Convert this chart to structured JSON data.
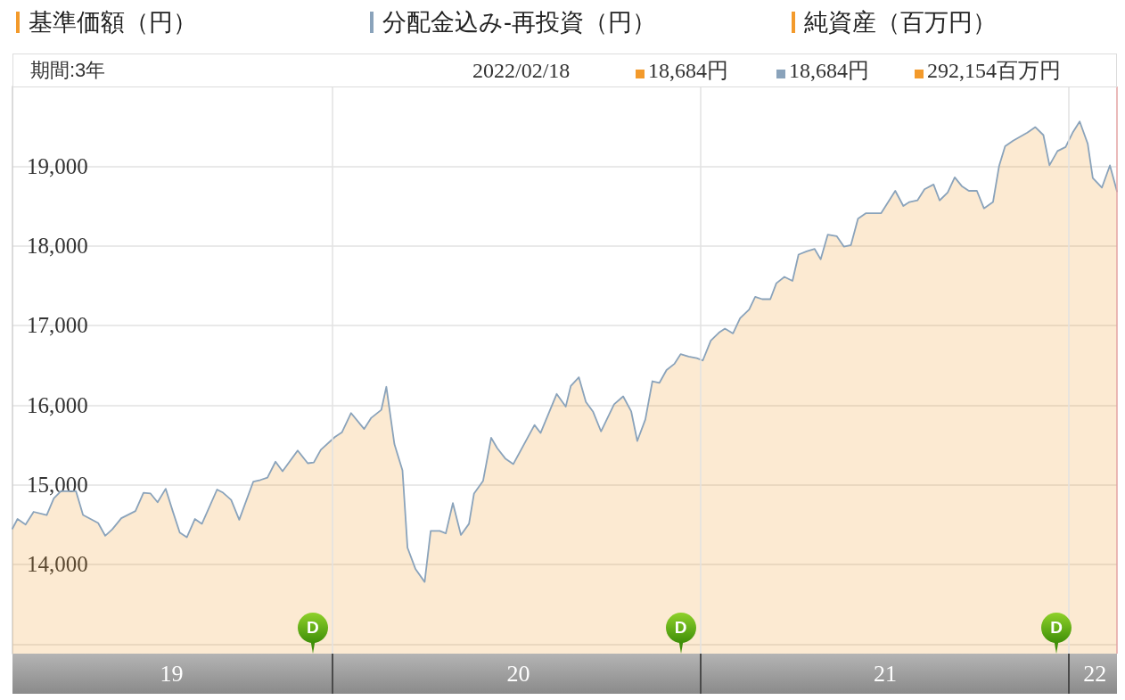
{
  "chart_data": {
    "type": "line",
    "x": [
      "2019-02-18",
      "2019-02-23",
      "2019-03-03",
      "2019-03-11",
      "2019-03-24",
      "2019-03-31",
      "2019-04-07",
      "2019-04-22",
      "2019-04-29",
      "2019-05-14",
      "2019-05-21",
      "2019-05-28",
      "2019-06-06",
      "2019-06-20",
      "2019-06-28",
      "2019-07-05",
      "2019-07-12",
      "2019-07-20",
      "2019-07-27",
      "2019-08-03",
      "2019-08-10",
      "2019-08-18",
      "2019-08-25",
      "2019-09-09",
      "2019-09-15",
      "2019-09-23",
      "2019-10-01",
      "2019-10-15",
      "2019-10-22",
      "2019-10-29",
      "2019-11-06",
      "2019-11-13",
      "2019-11-28",
      "2019-12-08",
      "2019-12-14",
      "2019-12-21",
      "2020-01-04",
      "2020-01-11",
      "2020-01-20",
      "2020-02-02",
      "2020-02-09",
      "2020-02-19",
      "2020-02-24",
      "2020-03-03",
      "2020-03-11",
      "2020-03-16",
      "2020-03-24",
      "2020-04-02",
      "2020-04-08",
      "2020-04-17",
      "2020-04-23",
      "2020-04-30",
      "2020-05-08",
      "2020-05-16",
      "2020-05-21",
      "2020-05-30",
      "2020-06-07",
      "2020-06-13",
      "2020-06-21",
      "2020-06-29",
      "2020-07-20",
      "2020-07-26",
      "2020-08-11",
      "2020-08-20",
      "2020-08-25",
      "2020-09-02",
      "2020-09-09",
      "2020-09-16",
      "2020-09-24",
      "2020-10-07",
      "2020-10-16",
      "2020-10-24",
      "2020-10-30",
      "2020-11-07",
      "2020-11-14",
      "2020-11-21",
      "2020-11-28",
      "2020-12-06",
      "2020-12-12",
      "2020-12-20",
      "2020-12-28",
      "2021-01-03",
      "2021-01-11",
      "2021-01-19",
      "2021-01-25",
      "2021-02-02",
      "2021-02-09",
      "2021-02-18",
      "2021-02-24",
      "2021-03-03",
      "2021-03-11",
      "2021-03-17",
      "2021-03-25",
      "2021-04-02",
      "2021-04-08",
      "2021-04-16",
      "2021-04-24",
      "2021-04-30",
      "2021-05-07",
      "2021-05-16",
      "2021-05-23",
      "2021-05-30",
      "2021-06-06",
      "2021-06-14",
      "2021-06-29",
      "2021-07-13",
      "2021-07-21",
      "2021-07-27",
      "2021-08-04",
      "2021-08-11",
      "2021-08-20",
      "2021-08-26",
      "2021-09-03",
      "2021-09-10",
      "2021-09-17",
      "2021-09-24",
      "2021-10-02",
      "2021-10-09",
      "2021-10-18",
      "2021-10-24",
      "2021-10-30",
      "2021-11-07",
      "2021-11-14",
      "2021-11-21",
      "2021-11-29",
      "2021-12-07",
      "2021-12-13",
      "2021-12-21",
      "2021-12-29",
      "2022-01-05",
      "2022-01-12",
      "2022-01-20",
      "2022-01-25",
      "2022-02-03",
      "2022-02-11",
      "2022-02-18"
    ],
    "series": [
      {
        "name": "基準価額（円）",
        "type": "area",
        "color": "#f39a2b",
        "values": [
          14450,
          14570,
          14500,
          14660,
          14620,
          14830,
          14920,
          14920,
          14620,
          14520,
          14360,
          14440,
          14580,
          14670,
          14900,
          14890,
          14780,
          14950,
          14670,
          14400,
          14340,
          14570,
          14510,
          14940,
          14900,
          14810,
          14560,
          15040,
          15060,
          15090,
          15290,
          15170,
          15430,
          15270,
          15280,
          15440,
          15600,
          15660,
          15900,
          15700,
          15840,
          15940,
          16230,
          15510,
          15180,
          14210,
          13940,
          13780,
          14420,
          14420,
          14390,
          14770,
          14370,
          14510,
          14890,
          15050,
          15590,
          15460,
          15330,
          15260,
          15750,
          15650,
          16140,
          15980,
          16240,
          16350,
          16040,
          15920,
          15670,
          16010,
          16110,
          15920,
          15550,
          15820,
          16300,
          16280,
          16440,
          16520,
          16640,
          16610,
          16590,
          16560,
          16810,
          16910,
          16960,
          16900,
          17090,
          17200,
          17360,
          17330,
          17330,
          17530,
          17610,
          17560,
          17890,
          17930,
          17960,
          17830,
          18140,
          18120,
          17990,
          18010,
          18340,
          18410,
          18410,
          18690,
          18500,
          18550,
          18570,
          18710,
          18770,
          18570,
          18670,
          18860,
          18750,
          18690,
          18690,
          18470,
          18550,
          19000,
          19250,
          19320,
          19370,
          19420,
          19490,
          19390,
          19010,
          19190,
          19240,
          19420,
          19560,
          19280,
          18850,
          18730,
          19010,
          18684
        ]
      },
      {
        "name": "分配金込み-再投資（円）",
        "color": "#8aa3bb",
        "values": [
          14450,
          14570,
          14500,
          14660,
          14620,
          14830,
          14920,
          14920,
          14620,
          14520,
          14360,
          14440,
          14580,
          14670,
          14900,
          14890,
          14780,
          14950,
          14670,
          14400,
          14340,
          14570,
          14510,
          14940,
          14900,
          14810,
          14560,
          15040,
          15060,
          15090,
          15290,
          15170,
          15430,
          15270,
          15280,
          15440,
          15600,
          15660,
          15900,
          15700,
          15840,
          15940,
          16230,
          15510,
          15180,
          14210,
          13940,
          13780,
          14420,
          14420,
          14390,
          14770,
          14370,
          14510,
          14890,
          15050,
          15590,
          15460,
          15330,
          15260,
          15750,
          15650,
          16140,
          15980,
          16240,
          16350,
          16040,
          15920,
          15670,
          16010,
          16110,
          15920,
          15550,
          15820,
          16300,
          16280,
          16440,
          16520,
          16640,
          16610,
          16590,
          16560,
          16810,
          16910,
          16960,
          16900,
          17090,
          17200,
          17360,
          17330,
          17330,
          17530,
          17610,
          17560,
          17890,
          17930,
          17960,
          17830,
          18140,
          18120,
          17990,
          18010,
          18340,
          18410,
          18410,
          18690,
          18500,
          18550,
          18570,
          18710,
          18770,
          18570,
          18670,
          18860,
          18750,
          18690,
          18690,
          18470,
          18550,
          19000,
          19250,
          19320,
          19370,
          19420,
          19490,
          19390,
          19010,
          19190,
          19240,
          19420,
          19560,
          19280,
          18850,
          18730,
          19010,
          18684
        ]
      }
    ],
    "xlim": [
      "2019-02-18",
      "2022-02-18"
    ],
    "xticks": [
      {
        "value": "2019-07-26",
        "label": "19"
      },
      {
        "value": "2020-01-01",
        "label": null
      },
      {
        "value": "2020-07-04",
        "label": "20"
      },
      {
        "value": "2021-01-01",
        "label": null
      },
      {
        "value": "2021-07-03",
        "label": "21"
      },
      {
        "value": "2022-01-01",
        "label": null
      },
      {
        "value": "2022-01-27",
        "label": "22"
      }
    ],
    "ylim": [
      12880,
      20000
    ],
    "yticks": [
      {
        "value": 13000,
        "label": null
      },
      {
        "value": 14000,
        "label": "14,000"
      },
      {
        "value": 15000,
        "label": "15,000"
      },
      {
        "value": 16000,
        "label": "16,000"
      },
      {
        "value": 17000,
        "label": "17,000"
      },
      {
        "value": 18000,
        "label": "18,000"
      },
      {
        "value": 19000,
        "label": "19,000"
      }
    ],
    "grid": true,
    "legend": "top",
    "ref_lines": [
      {
        "axis": "x",
        "value": "2022-02-18",
        "color": "#e3a3a3"
      }
    ],
    "annotations": [
      "純資産（百万円）",
      "期間:3年",
      "2022/02/18",
      "18,684円",
      "18,684円",
      "292,154百万円",
      {
        "text": "D",
        "x": "2019-12-13",
        "y": 12880
      },
      {
        "text": "D",
        "x": "2020-12-12",
        "y": 12880
      },
      {
        "text": "D",
        "x": "2021-12-20",
        "y": 12880
      }
    ]
  }
}
